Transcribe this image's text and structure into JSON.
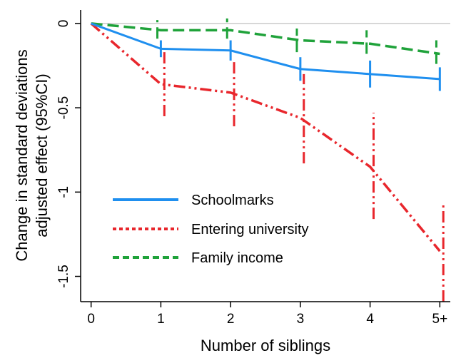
{
  "chart_data": {
    "type": "line",
    "xlabel": "Number of siblings",
    "ylabel_lines": [
      "Change in standard deviations",
      "adjusted effect (95%CI)"
    ],
    "x": [
      0,
      1,
      2,
      3,
      4,
      5
    ],
    "x_tick_labels": [
      "0",
      "1",
      "2",
      "3",
      "4",
      "5+"
    ],
    "y_ticks": [
      0,
      -0.5,
      -1,
      -1.5
    ],
    "y_tick_labels": [
      "0",
      "-0.5",
      "-1",
      "-1.5"
    ],
    "xlim": [
      -0.15,
      5.15
    ],
    "ylim": [
      -1.65,
      0.08
    ],
    "reference_line": 0,
    "legend_position": "lower-left",
    "series": [
      {
        "name": "Schoolmarks",
        "color": "#1f8fef",
        "dash": "solid",
        "values": [
          0,
          -0.15,
          -0.16,
          -0.27,
          -0.3,
          -0.33
        ],
        "ci": [
          null,
          [
            -0.2,
            -0.1
          ],
          [
            -0.22,
            -0.1
          ],
          [
            -0.34,
            -0.2
          ],
          [
            -0.38,
            -0.22
          ],
          [
            -0.4,
            -0.26
          ]
        ]
      },
      {
        "name": "Entering university",
        "color": "#e8262c",
        "dash": "dashdotdot",
        "values": [
          0,
          -0.36,
          -0.41,
          -0.56,
          -0.85,
          -1.35
        ],
        "ci": [
          null,
          [
            -0.55,
            -0.17
          ],
          [
            -0.61,
            -0.21
          ],
          [
            -0.83,
            -0.3
          ],
          [
            -1.16,
            -0.53
          ],
          [
            -1.65,
            -1.06
          ]
        ]
      },
      {
        "name": "Family income",
        "color": "#1fa23a",
        "dash": "dashed",
        "values": [
          0,
          -0.04,
          -0.04,
          -0.1,
          -0.12,
          -0.18
        ],
        "ci": [
          null,
          [
            -0.09,
            0.02
          ],
          [
            -0.09,
            0.03
          ],
          [
            -0.17,
            -0.03
          ],
          [
            -0.18,
            -0.04
          ],
          [
            -0.24,
            -0.1
          ]
        ]
      }
    ]
  }
}
